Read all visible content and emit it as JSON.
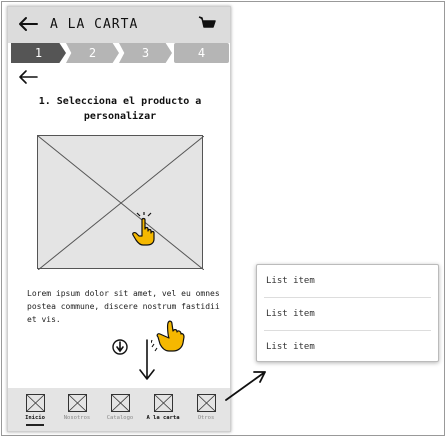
{
  "header": {
    "title": "A LA CARTA",
    "back_icon": "arrow-left-icon",
    "cart_icon": "cart-icon"
  },
  "steps": [
    {
      "label": "1",
      "active": true
    },
    {
      "label": "2",
      "active": false
    },
    {
      "label": "3",
      "active": false
    },
    {
      "label": "4",
      "active": false
    }
  ],
  "content": {
    "title": "1. Selecciona el producto a personalizar",
    "body": "Lorem ipsum dolor sit amet, vel eu omnes postea commune, discere nostrum fastidii et vis."
  },
  "nav": [
    {
      "label": "Inicio",
      "active": true
    },
    {
      "label": "Nosotros",
      "active": false
    },
    {
      "label": "Catalogo",
      "active": false
    },
    {
      "label": "A la carta",
      "active": false
    },
    {
      "label": "Otros",
      "active": false
    }
  ],
  "list": {
    "items": [
      "List item",
      "List item",
      "List item"
    ]
  },
  "colors": {
    "header_bg": "#dcdcdc",
    "step_active": "#555555",
    "step_inactive": "#b5b5b5",
    "hand": "#f5b800",
    "nav_bg": "#e4e4e4"
  }
}
